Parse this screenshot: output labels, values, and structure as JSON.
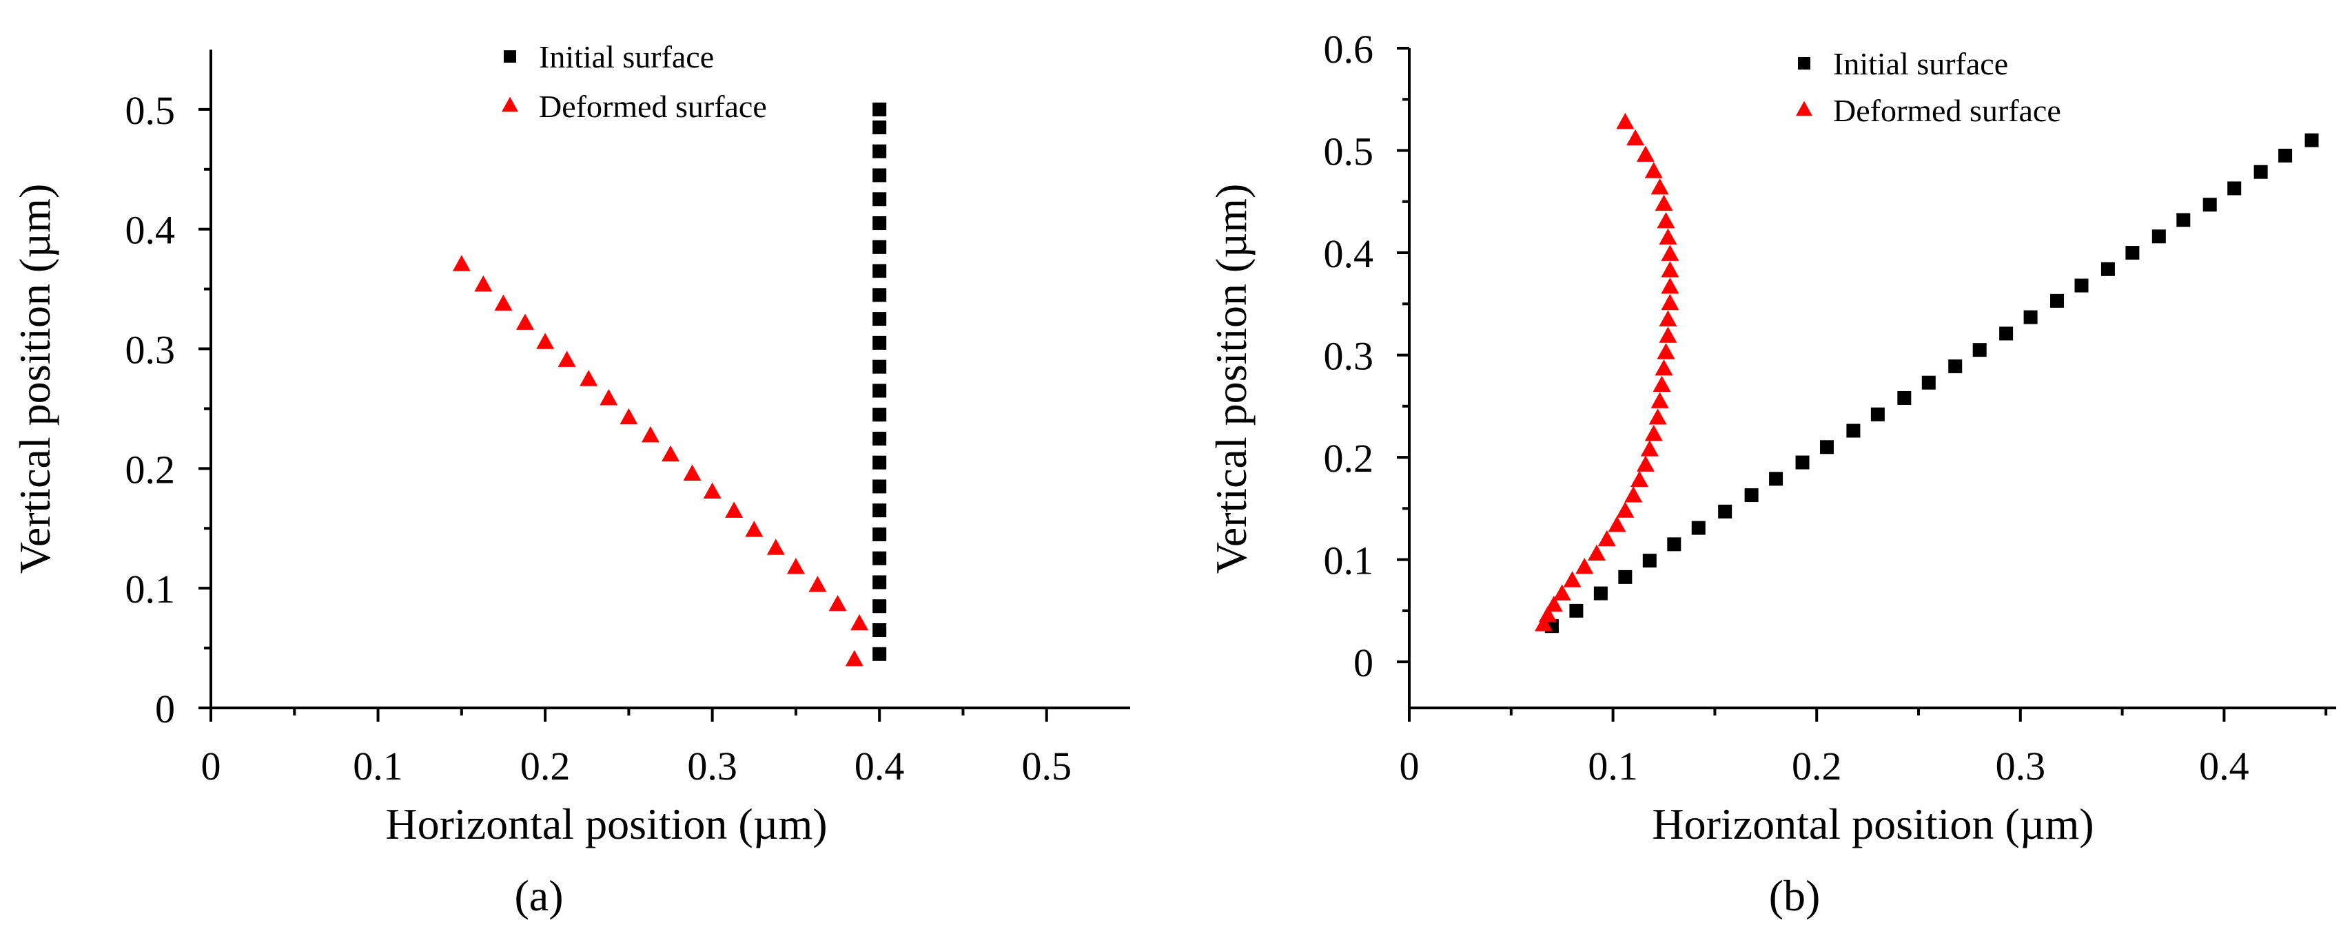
{
  "colors": {
    "initial": "#000000",
    "deformed": "#ff0000",
    "axis": "#000000"
  },
  "chart_data": [
    {
      "type": "scatter",
      "caption": "(a)",
      "xlabel": "Horizontal position (µm)",
      "ylabel": "Vertical position (µm)",
      "xlim": [
        0,
        0.55
      ],
      "ylim": [
        0,
        0.55
      ],
      "x_ticks": [
        0,
        0.1,
        0.2,
        0.3,
        0.4,
        0.5
      ],
      "y_ticks": [
        0,
        0.1,
        0.2,
        0.3,
        0.4,
        0.5
      ],
      "x_tick_labels": [
        "0",
        "0.1",
        "0.2",
        "0.3",
        "0.4",
        "0.5"
      ],
      "y_tick_labels": [
        "0",
        "0.1",
        "0.2",
        "0.3",
        "0.4",
        "0.5"
      ],
      "legend_position": "top-center",
      "series": [
        {
          "name": "Initial surface",
          "marker": "square",
          "color": "#000000",
          "points": [
            [
              0.4,
              0.045
            ],
            [
              0.4,
              0.065
            ],
            [
              0.4,
              0.085
            ],
            [
              0.4,
              0.105
            ],
            [
              0.4,
              0.125
            ],
            [
              0.4,
              0.145
            ],
            [
              0.4,
              0.165
            ],
            [
              0.4,
              0.185
            ],
            [
              0.4,
              0.205
            ],
            [
              0.4,
              0.225
            ],
            [
              0.4,
              0.245
            ],
            [
              0.4,
              0.265
            ],
            [
              0.4,
              0.285
            ],
            [
              0.4,
              0.305
            ],
            [
              0.4,
              0.325
            ],
            [
              0.4,
              0.345
            ],
            [
              0.4,
              0.365
            ],
            [
              0.4,
              0.385
            ],
            [
              0.4,
              0.405
            ],
            [
              0.4,
              0.425
            ],
            [
              0.4,
              0.445
            ],
            [
              0.4,
              0.465
            ],
            [
              0.4,
              0.485
            ],
            [
              0.4,
              0.5
            ]
          ]
        },
        {
          "name": "Deformed surface",
          "marker": "triangle",
          "color": "#ff0000",
          "points": [
            [
              0.15,
              0.37
            ],
            [
              0.163,
              0.353
            ],
            [
              0.175,
              0.337
            ],
            [
              0.188,
              0.321
            ],
            [
              0.2,
              0.305
            ],
            [
              0.213,
              0.29
            ],
            [
              0.226,
              0.274
            ],
            [
              0.238,
              0.258
            ],
            [
              0.25,
              0.242
            ],
            [
              0.263,
              0.227
            ],
            [
              0.275,
              0.211
            ],
            [
              0.288,
              0.195
            ],
            [
              0.3,
              0.18
            ],
            [
              0.313,
              0.164
            ],
            [
              0.325,
              0.148
            ],
            [
              0.338,
              0.133
            ],
            [
              0.35,
              0.117
            ],
            [
              0.363,
              0.102
            ],
            [
              0.375,
              0.086
            ],
            [
              0.388,
              0.07
            ],
            [
              0.385,
              0.04
            ]
          ]
        }
      ]
    },
    {
      "type": "scatter",
      "caption": "(b)",
      "xlabel": "Horizontal position (µm)",
      "ylabel": "Vertical position (µm)",
      "xlim": [
        0,
        0.455
      ],
      "ylim": [
        -0.045,
        0.6
      ],
      "x_ticks": [
        0,
        0.1,
        0.2,
        0.3,
        0.4
      ],
      "y_ticks": [
        0,
        0.1,
        0.2,
        0.3,
        0.4,
        0.5,
        0.6
      ],
      "x_tick_labels": [
        "0",
        "0.1",
        "0.2",
        "0.3",
        "0.4"
      ],
      "y_tick_labels": [
        "0",
        "0.1",
        "0.2",
        "0.3",
        "0.4",
        "0.5",
        "0.6"
      ],
      "legend_position": "top-right",
      "series": [
        {
          "name": "Initial surface",
          "marker": "square",
          "color": "#000000",
          "points": [
            [
              0.07,
              0.035
            ],
            [
              0.082,
              0.05
            ],
            [
              0.094,
              0.067
            ],
            [
              0.106,
              0.083
            ],
            [
              0.118,
              0.099
            ],
            [
              0.13,
              0.115
            ],
            [
              0.142,
              0.131
            ],
            [
              0.155,
              0.147
            ],
            [
              0.168,
              0.163
            ],
            [
              0.18,
              0.179
            ],
            [
              0.193,
              0.195
            ],
            [
              0.205,
              0.21
            ],
            [
              0.218,
              0.226
            ],
            [
              0.23,
              0.242
            ],
            [
              0.243,
              0.258
            ],
            [
              0.255,
              0.273
            ],
            [
              0.268,
              0.289
            ],
            [
              0.28,
              0.305
            ],
            [
              0.293,
              0.321
            ],
            [
              0.305,
              0.337
            ],
            [
              0.318,
              0.353
            ],
            [
              0.33,
              0.368
            ],
            [
              0.343,
              0.384
            ],
            [
              0.355,
              0.4
            ],
            [
              0.368,
              0.416
            ],
            [
              0.38,
              0.432
            ],
            [
              0.393,
              0.447
            ],
            [
              0.405,
              0.463
            ],
            [
              0.418,
              0.479
            ],
            [
              0.43,
              0.495
            ],
            [
              0.443,
              0.51
            ]
          ]
        },
        {
          "name": "Deformed surface",
          "marker": "triangle",
          "color": "#ff0000",
          "points": [
            [
              0.106,
              0.527
            ],
            [
              0.111,
              0.511
            ],
            [
              0.116,
              0.495
            ],
            [
              0.12,
              0.479
            ],
            [
              0.123,
              0.463
            ],
            [
              0.125,
              0.447
            ],
            [
              0.126,
              0.43
            ],
            [
              0.127,
              0.414
            ],
            [
              0.128,
              0.398
            ],
            [
              0.128,
              0.382
            ],
            [
              0.128,
              0.366
            ],
            [
              0.128,
              0.35
            ],
            [
              0.127,
              0.334
            ],
            [
              0.127,
              0.318
            ],
            [
              0.126,
              0.302
            ],
            [
              0.125,
              0.286
            ],
            [
              0.124,
              0.27
            ],
            [
              0.123,
              0.254
            ],
            [
              0.122,
              0.238
            ],
            [
              0.12,
              0.222
            ],
            [
              0.118,
              0.207
            ],
            [
              0.116,
              0.192
            ],
            [
              0.113,
              0.177
            ],
            [
              0.11,
              0.162
            ],
            [
              0.106,
              0.147
            ],
            [
              0.102,
              0.133
            ],
            [
              0.097,
              0.119
            ],
            [
              0.092,
              0.105
            ],
            [
              0.086,
              0.092
            ],
            [
              0.08,
              0.079
            ],
            [
              0.075,
              0.066
            ],
            [
              0.071,
              0.055
            ],
            [
              0.068,
              0.045
            ],
            [
              0.066,
              0.036
            ]
          ]
        }
      ]
    }
  ]
}
